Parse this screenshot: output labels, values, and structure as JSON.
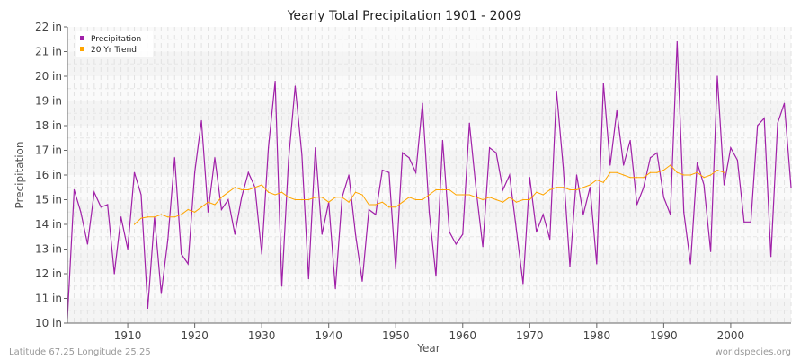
{
  "chart_data": {
    "type": "line",
    "title": "Yearly Total Precipitation 1901 - 2009",
    "xlabel": "Year",
    "ylabel": "Precipitation",
    "ylim": [
      10,
      22
    ],
    "xlim": [
      1901,
      2009
    ],
    "y_unit": "in",
    "y_ticks": [
      "10 in",
      "11 in",
      "12 in",
      "13 in",
      "14 in",
      "15 in",
      "16 in",
      "17 in",
      "18 in",
      "19 in",
      "20 in",
      "21 in",
      "22 in"
    ],
    "x_ticks": [
      "1910",
      "1920",
      "1930",
      "1940",
      "1950",
      "1960",
      "1970",
      "1980",
      "1990",
      "2000"
    ],
    "grid": true,
    "legend_placement": "top-left",
    "series": [
      {
        "name": "Precipitation",
        "color": "#a020a8",
        "start_year": 1901,
        "values": [
          10.2,
          15.4,
          14.5,
          13.2,
          15.3,
          14.7,
          14.8,
          12.0,
          14.3,
          13.0,
          16.1,
          15.2,
          10.6,
          14.3,
          11.2,
          13.4,
          16.7,
          12.8,
          12.4,
          16.1,
          18.2,
          14.5,
          16.7,
          14.6,
          15.0,
          13.6,
          15.1,
          16.1,
          15.5,
          12.8,
          17.1,
          19.8,
          11.5,
          16.6,
          19.6,
          16.8,
          11.8,
          17.1,
          13.6,
          14.9,
          11.4,
          15.1,
          16.0,
          13.6,
          11.7,
          14.6,
          14.4,
          16.2,
          16.1,
          12.2,
          16.9,
          16.7,
          16.1,
          18.9,
          14.5,
          11.9,
          17.4,
          13.7,
          13.2,
          13.6,
          18.1,
          15.4,
          13.1,
          17.1,
          16.9,
          15.4,
          16.0,
          13.8,
          11.6,
          15.9,
          13.7,
          14.4,
          13.4,
          19.4,
          16.3,
          12.3,
          16.0,
          14.4,
          15.5,
          12.4,
          19.7,
          16.4,
          18.6,
          16.4,
          17.4,
          14.8,
          15.5,
          16.7,
          16.9,
          15.1,
          14.4,
          21.4,
          14.5,
          12.4,
          16.5,
          15.6,
          12.9,
          20.0,
          15.6,
          17.1,
          16.6,
          14.1,
          14.1,
          18.0,
          18.3,
          12.7,
          18.1,
          18.9,
          15.5
        ]
      },
      {
        "name": "20 Yr Trend",
        "color": "#ffa500",
        "start_year": 1911,
        "values": [
          14.0,
          14.25,
          14.3,
          14.3,
          14.4,
          14.3,
          14.3,
          14.4,
          14.6,
          14.5,
          14.7,
          14.9,
          14.8,
          15.1,
          15.3,
          15.5,
          15.4,
          15.4,
          15.5,
          15.6,
          15.3,
          15.2,
          15.3,
          15.1,
          15.0,
          15.0,
          15.0,
          15.1,
          15.1,
          14.9,
          15.1,
          15.1,
          14.9,
          15.3,
          15.2,
          14.8,
          14.8,
          14.9,
          14.7,
          14.7,
          14.9,
          15.1,
          15.0,
          15.0,
          15.2,
          15.4,
          15.4,
          15.4,
          15.2,
          15.2,
          15.2,
          15.1,
          15.0,
          15.1,
          15.0,
          14.9,
          15.1,
          14.9,
          15.0,
          15.0,
          15.3,
          15.2,
          15.4,
          15.5,
          15.5,
          15.4,
          15.4,
          15.5,
          15.6,
          15.8,
          15.7,
          16.1,
          16.1,
          16.0,
          15.9,
          15.9,
          15.9,
          16.1,
          16.1,
          16.2,
          16.4,
          16.1,
          16.0,
          16.0,
          16.1,
          15.9,
          16.0,
          16.2,
          16.1
        ]
      }
    ]
  },
  "footer": {
    "location": "Latitude 67.25 Longitude 25.25",
    "source": "worldspecies.org"
  }
}
